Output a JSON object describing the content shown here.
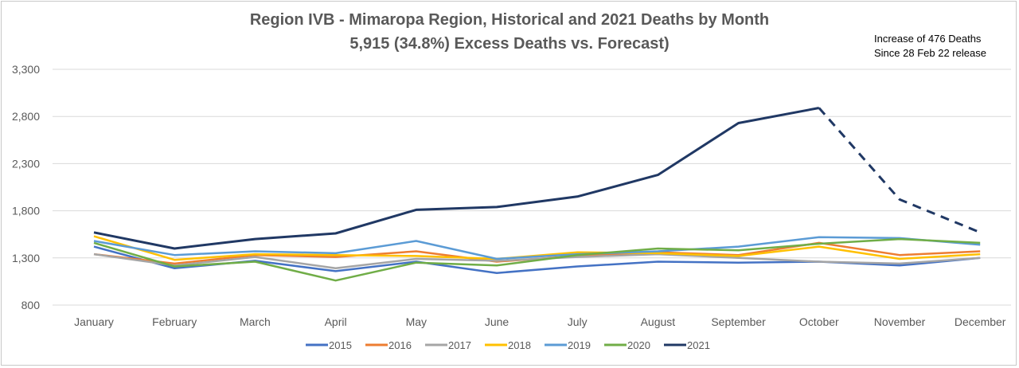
{
  "chart_data": {
    "type": "line",
    "title": "Region IVB - Mimaropa Region, Historical and 2021 Deaths by Month",
    "subtitle": "5,915 (34.8%) Excess Deaths vs. Forecast)",
    "annotation": [
      "Increase of 476 Deaths",
      "Since 28 Feb 22 release"
    ],
    "categories": [
      "January",
      "February",
      "March",
      "April",
      "May",
      "June",
      "July",
      "August",
      "September",
      "October",
      "November",
      "December"
    ],
    "y_ticks": [
      800,
      1300,
      1800,
      2300,
      2800,
      3300
    ],
    "y_tick_labels": [
      "800",
      "1,300",
      "1,800",
      "2,300",
      "2,800",
      "3,300"
    ],
    "ylim": [
      800,
      3300
    ],
    "grid": true,
    "legend_position": "bottom",
    "series": [
      {
        "name": "2015",
        "color": "#4472c4",
        "values": [
          1420,
          1190,
          1270,
          1160,
          1260,
          1140,
          1210,
          1260,
          1250,
          1260,
          1220,
          1300
        ]
      },
      {
        "name": "2016",
        "color": "#ed7d31",
        "values": [
          1340,
          1240,
          1330,
          1310,
          1370,
          1260,
          1320,
          1360,
          1330,
          1460,
          1330,
          1370
        ]
      },
      {
        "name": "2017",
        "color": "#a5a5a5",
        "values": [
          1340,
          1220,
          1310,
          1190,
          1290,
          1270,
          1310,
          1340,
          1300,
          1260,
          1240,
          1300
        ]
      },
      {
        "name": "2018",
        "color": "#ffc000",
        "values": [
          1530,
          1280,
          1340,
          1330,
          1320,
          1290,
          1360,
          1350,
          1320,
          1420,
          1290,
          1340
        ]
      },
      {
        "name": "2019",
        "color": "#5b9bd5",
        "values": [
          1480,
          1330,
          1370,
          1350,
          1480,
          1290,
          1340,
          1370,
          1420,
          1520,
          1510,
          1440
        ]
      },
      {
        "name": "2020",
        "color": "#70ad47",
        "values": [
          1460,
          1210,
          1260,
          1060,
          1250,
          1220,
          1330,
          1400,
          1380,
          1450,
          1500,
          1460
        ]
      },
      {
        "name": "2021",
        "color": "#203864",
        "values": [
          1570,
          1400,
          1500,
          1560,
          1810,
          1840,
          1950,
          2180,
          2730,
          2890,
          1920,
          1570
        ],
        "dashed_from_index": 9
      }
    ]
  }
}
